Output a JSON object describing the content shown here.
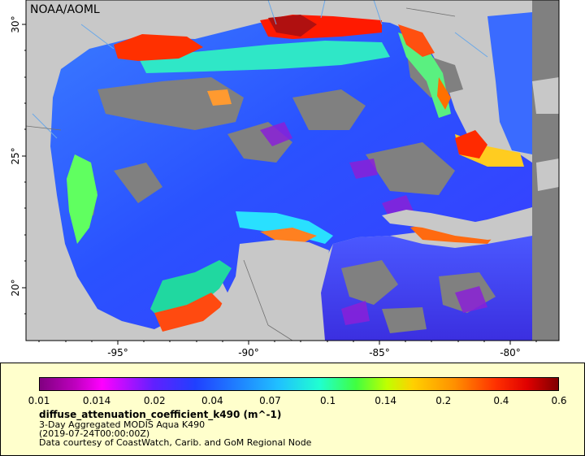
{
  "map": {
    "credit": "NOAA/AOML",
    "lon_ticks": [
      "-95°",
      "-90°",
      "-85°",
      "-80°"
    ],
    "lat_ticks": [
      "30°",
      "25°",
      "20°"
    ],
    "colors": {
      "land": "#c8c8c8",
      "no_data": "#808080",
      "water_low": "#2a4bff",
      "water_mid": "#25c7ff",
      "water_high": "#ff2a00"
    }
  },
  "legend": {
    "colorbar_ticks": [
      "0.01",
      "0.014",
      "0.02",
      "0.04",
      "0.07",
      "0.1",
      "0.14",
      "0.2",
      "0.4",
      "0.6"
    ],
    "variable": "diffuse_attenuation_coefficient_k490 (m^-1)",
    "product": "3-Day Aggregated MODIS Aqua K490",
    "date": "(2019-07-24T00:00:00Z)",
    "courtesy": "Data courtesy of CoastWatch, Carib. and GoM Regional Node"
  }
}
